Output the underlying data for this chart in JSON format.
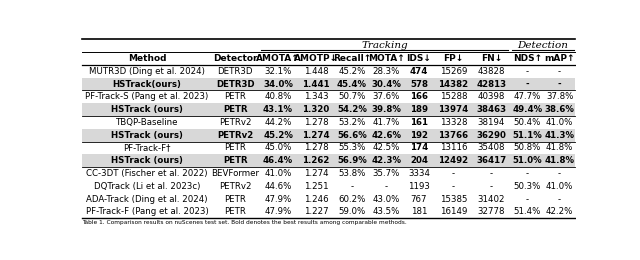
{
  "title_tracking": "Tracking",
  "title_detection": "Detection",
  "col_headers": [
    "Method",
    "Detector",
    "AMOTA↑",
    "AMOTP↓",
    "Recall↑",
    "MOTA↑",
    "IDS↓",
    "FP↓",
    "FN↓",
    "NDS↑",
    "mAP↑"
  ],
  "rows": [
    [
      "MUTR3D (Ding et al. 2024)",
      "DETR3D",
      "32.1%",
      "1.448",
      "45.2%",
      "28.3%",
      "474",
      "15269",
      "43828",
      "-",
      "-"
    ],
    [
      "HSTrack(ours)",
      "DETR3D",
      "34.0%",
      "1.441",
      "45.4%",
      "30.4%",
      "578",
      "14382",
      "42813",
      "-",
      "-"
    ],
    [
      "PF-Track-S (Pang et al. 2023)",
      "PETR",
      "40.8%",
      "1.343",
      "50.7%",
      "37.6%",
      "166",
      "15288",
      "40398",
      "47.7%",
      "37.8%"
    ],
    [
      "HSTrack (ours)",
      "PETR",
      "43.1%",
      "1.320",
      "54.2%",
      "39.8%",
      "189",
      "13974",
      "38463",
      "49.4%",
      "38.6%"
    ],
    [
      "TBQP-Baseline",
      "PETRv2",
      "44.2%",
      "1.278",
      "53.2%",
      "41.7%",
      "161",
      "13328",
      "38194",
      "50.4%",
      "41.0%"
    ],
    [
      "HSTrack (ours)",
      "PETRv2",
      "45.2%",
      "1.274",
      "56.6%",
      "42.6%",
      "192",
      "13766",
      "36290",
      "51.1%",
      "41.3%"
    ],
    [
      "PF-Track-F†",
      "PETR",
      "45.0%",
      "1.278",
      "55.3%",
      "42.5%",
      "174",
      "13116",
      "35408",
      "50.8%",
      "41.8%"
    ],
    [
      "HSTrack (ours)",
      "PETR",
      "46.4%",
      "1.262",
      "56.9%",
      "42.3%",
      "204",
      "12492",
      "36417",
      "51.0%",
      "41.8%"
    ],
    [
      "CC-3DT (Fischer et al. 2022)",
      "BEVFormer",
      "41.0%",
      "1.274",
      "53.8%",
      "35.7%",
      "3334",
      "-",
      "-",
      "-",
      "-"
    ],
    [
      "DQTrack (Li et al. 2023c)",
      "PETRv2",
      "44.6%",
      "1.251",
      "-",
      "-",
      "1193",
      "-",
      "-",
      "50.3%",
      "41.0%"
    ],
    [
      "ADA-Track (Ding et al. 2024)",
      "PETR",
      "47.9%",
      "1.246",
      "60.2%",
      "43.0%",
      "767",
      "15385",
      "31402",
      "-",
      "-"
    ],
    [
      "PF-Track-F (Pang et al. 2023)",
      "PETR",
      "47.9%",
      "1.227",
      "59.0%",
      "43.5%",
      "181",
      "16149",
      "32778",
      "51.4%",
      "42.2%"
    ]
  ],
  "bold_rows": [
    1,
    3,
    5,
    7
  ],
  "bold_cells": {
    "0": [
      6
    ],
    "2": [
      6
    ],
    "4": [
      6
    ],
    "6": [
      6
    ]
  },
  "shaded_rows": [
    1,
    3,
    5,
    7
  ],
  "group_separators_after": [
    1,
    3,
    5,
    7
  ],
  "background_color": "#ffffff",
  "shade_color": "#d8d8d8",
  "col_widths_rel": [
    2.3,
    0.85,
    0.68,
    0.68,
    0.6,
    0.62,
    0.55,
    0.68,
    0.68,
    0.6,
    0.55
  ],
  "caption": "Table 1. Comparison results on nuScenes test set. Bold denotes the best results among comparable methods.",
  "tracking_span": [
    2,
    8
  ],
  "detection_span": [
    9,
    10
  ]
}
